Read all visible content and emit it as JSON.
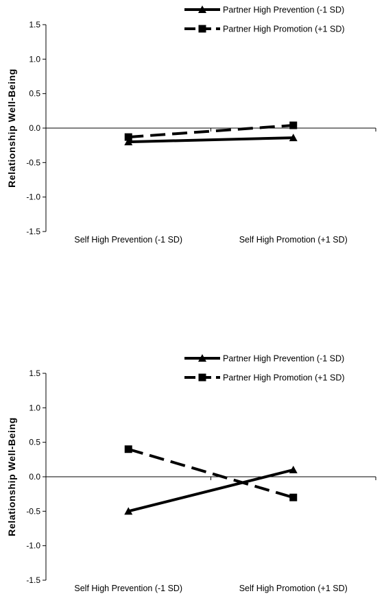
{
  "chart_data": [
    {
      "type": "line",
      "categories": [
        "Self High Prevention (-1 SD)",
        "Self High Promotion (+1 SD)"
      ],
      "ylabel": "Relationship Well-Being",
      "ylim": [
        -1.5,
        1.5
      ],
      "yticks": [
        "1.5",
        "1.0",
        "0.5",
        "0.0",
        "-0.5",
        "-1.0",
        "-1.5"
      ],
      "ytick_values": [
        1.5,
        1.0,
        0.5,
        0.0,
        -0.5,
        -1.0,
        -1.5
      ],
      "grid": false,
      "legend_position": "top-right",
      "series": [
        {
          "name": "Partner High Prevention (-1 SD)",
          "values": [
            -0.2,
            -0.14
          ],
          "marker": "triangle",
          "line": "solid"
        },
        {
          "name": "Partner High Promotion (+1 SD)",
          "values": [
            -0.13,
            0.04
          ],
          "marker": "square",
          "line": "dashed"
        }
      ]
    },
    {
      "type": "line",
      "categories": [
        "Self High Prevention (-1 SD)",
        "Self High Promotion (+1 SD)"
      ],
      "ylabel": "Relationship Well-Being",
      "ylim": [
        -1.5,
        1.5
      ],
      "yticks": [
        "1.5",
        "1.0",
        "0.5",
        "0.0",
        "-0.5",
        "-1.0",
        "-1.5"
      ],
      "ytick_values": [
        1.5,
        1.0,
        0.5,
        0.0,
        -0.5,
        -1.0,
        -1.5
      ],
      "grid": false,
      "legend_position": "top-right",
      "series": [
        {
          "name": "Partner High Prevention (-1 SD)",
          "values": [
            -0.5,
            0.1
          ],
          "marker": "triangle",
          "line": "solid"
        },
        {
          "name": "Partner High Promotion (+1 SD)",
          "values": [
            0.4,
            -0.3
          ],
          "marker": "square",
          "line": "dashed"
        }
      ]
    }
  ]
}
